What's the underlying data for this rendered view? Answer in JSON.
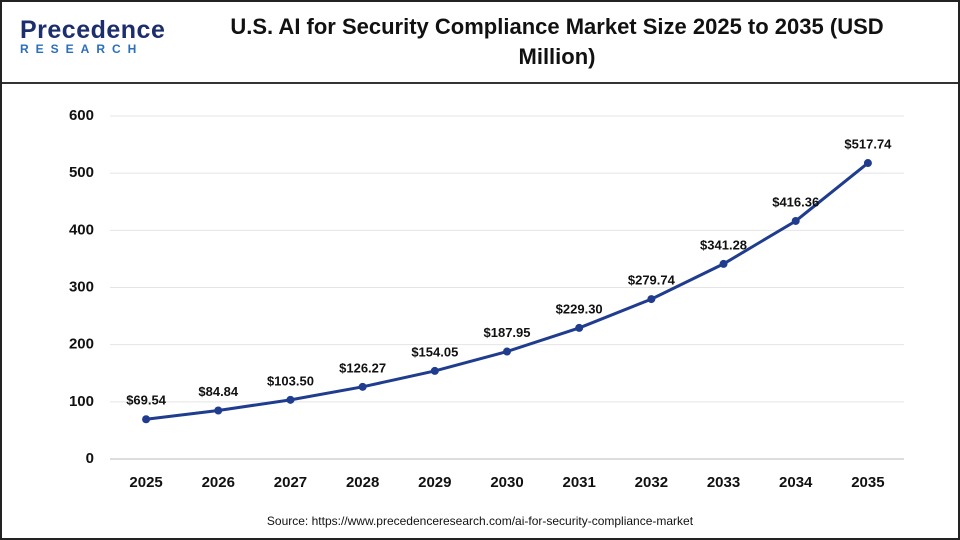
{
  "logo": {
    "name": "Precedence",
    "tagline": "RESEARCH"
  },
  "chart_data": {
    "type": "line",
    "title": "U.S. AI for Security Compliance Market Size 2025 to 2035 (USD Million)",
    "categories": [
      "2025",
      "2026",
      "2027",
      "2028",
      "2029",
      "2030",
      "2031",
      "2032",
      "2033",
      "2034",
      "2035"
    ],
    "values": [
      69.54,
      84.84,
      103.5,
      126.27,
      154.05,
      187.95,
      229.3,
      279.74,
      341.28,
      416.36,
      517.74
    ],
    "value_labels": [
      "$69.54",
      "$84.84",
      "$103.50",
      "$126.27",
      "$154.05",
      "$187.95",
      "$229.30",
      "$279.74",
      "$341.28",
      "$416.36",
      "$517.74"
    ],
    "color": "#1f3c8f",
    "ylim": [
      0,
      600
    ],
    "yticks": [
      0,
      100,
      200,
      300,
      400,
      500,
      600
    ],
    "grid": true,
    "source": "Source: https://www.precedenceresearch.com/ai-for-security-compliance-market"
  }
}
